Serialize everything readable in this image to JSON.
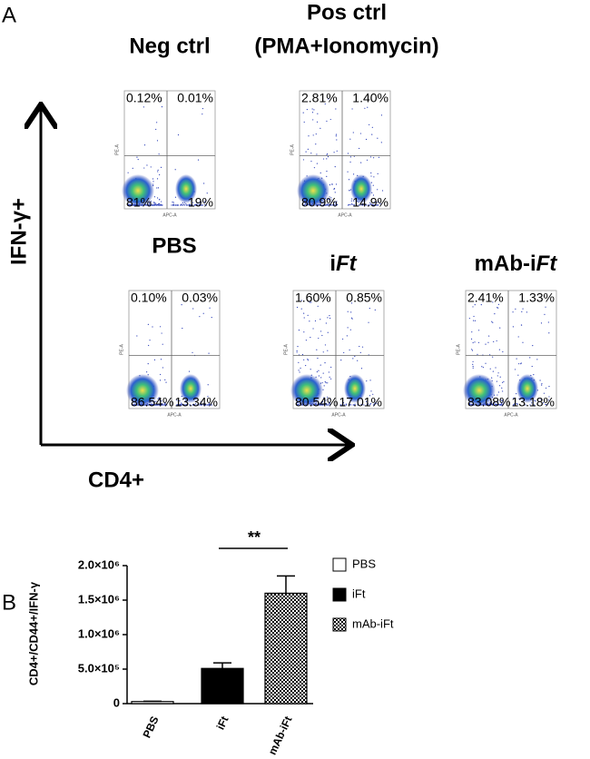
{
  "panel_a": {
    "label": "A",
    "y_axis_label": "IFN-γ+",
    "x_axis_label": "CD4+",
    "plots": [
      {
        "title_lines": [
          "Neg ctrl"
        ],
        "y_channel": "PE-A",
        "x_channel": "APC-A",
        "quadrants": [
          "0.12%",
          "0.01%",
          "81%",
          "19%"
        ]
      },
      {
        "title_lines": [
          "Pos ctrl",
          "(PMA+Ionomycin)"
        ],
        "y_channel": "PE-A",
        "x_channel": "APC-A",
        "quadrants": [
          "2.81%",
          "1.40%",
          "80.9%",
          "14.9%"
        ]
      },
      {
        "title_lines": [
          "PBS"
        ],
        "y_channel": "PE-A",
        "x_channel": "APC-A",
        "quadrants": [
          "0.10%",
          "0.03%",
          "86.54%",
          "13.34%"
        ]
      },
      {
        "title_prefix": "i",
        "title_italic": "Ft",
        "y_channel": "PE-A",
        "x_channel": "APC-A",
        "quadrants": [
          "1.60%",
          "0.85%",
          "80.54%",
          "17.01%"
        ]
      },
      {
        "title_prefix": "mAb-i",
        "title_italic": "Ft",
        "y_channel": "PE-A",
        "x_channel": "APC-A",
        "quadrants": [
          "2.41%",
          "1.33%",
          "83.08%",
          "13.18%"
        ]
      }
    ]
  },
  "chart_data": {
    "type": "bar",
    "panel_label": "B",
    "y_label": "CD4+/CD44+/IFN-γ",
    "categories": [
      "PBS",
      "iFt",
      "mAb-iFt"
    ],
    "values": [
      30000,
      510000,
      1600000
    ],
    "errors": [
      5000,
      80000,
      250000
    ],
    "colors": [
      "#ffffff",
      "#000000",
      "#777777"
    ],
    "patterns": [
      "none",
      "none",
      "checker"
    ],
    "ylim": [
      0,
      2000000
    ],
    "yticks": [
      {
        "value": 0,
        "label": "0"
      },
      {
        "value": 500000,
        "label": "5.0×10⁵"
      },
      {
        "value": 1000000,
        "label": "1.0×10⁶"
      },
      {
        "value": 1500000,
        "label": "1.5×10⁶"
      },
      {
        "value": 2000000,
        "label": "2.0×10⁶"
      }
    ],
    "annotation": "**"
  }
}
